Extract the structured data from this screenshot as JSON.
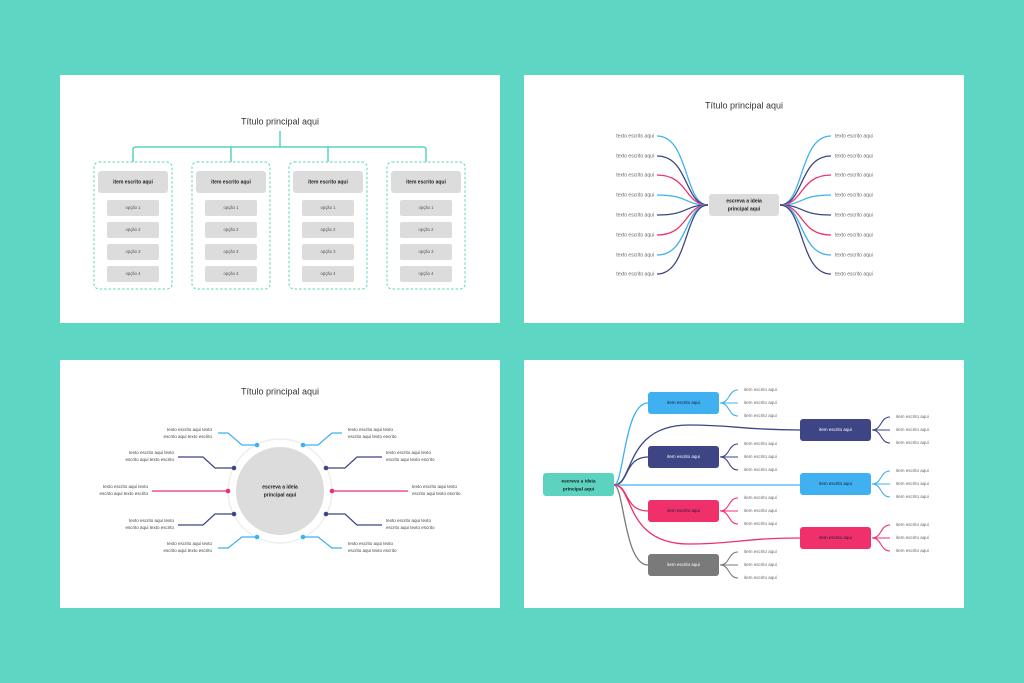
{
  "colors": {
    "background": "#5dd6c3",
    "light_blue": "#3fb0f0",
    "navy": "#3d4585",
    "pink": "#f0306a",
    "gray": "#7a7a7a",
    "teal": "#5bd3bf",
    "box_gray": "#dcdcdc"
  },
  "slide1": {
    "title": "Título principal aqui",
    "columns": [
      {
        "header": "item escrito aqui",
        "options": [
          "opção 1",
          "opção 2",
          "opção 3",
          "opção 4"
        ]
      },
      {
        "header": "item escrito aqui",
        "options": [
          "opção 1",
          "opção 2",
          "opção 3",
          "opção 4"
        ]
      },
      {
        "header": "item escrito aqui",
        "options": [
          "opção 1",
          "opção 2",
          "opção 3",
          "opção 4"
        ]
      },
      {
        "header": "item escrito aqui",
        "options": [
          "opção 1",
          "opção 2",
          "opção 3",
          "opção 4"
        ]
      }
    ]
  },
  "slide2": {
    "title": "Título principal aqui",
    "center": [
      "escreva a ideia",
      "principal  aqui"
    ],
    "left": [
      {
        "text": "texto escrito aqui",
        "color": "light_blue"
      },
      {
        "text": "texto escrito aqui",
        "color": "navy"
      },
      {
        "text": "texto escrito aqui",
        "color": "pink"
      },
      {
        "text": "texto escrito aqui",
        "color": "light_blue"
      },
      {
        "text": "texto escrito aqui",
        "color": "navy"
      },
      {
        "text": "texto escrito aqui",
        "color": "pink"
      },
      {
        "text": "texto escrito aqui",
        "color": "light_blue"
      },
      {
        "text": "texto escrito aqui",
        "color": "navy"
      }
    ],
    "right": [
      {
        "text": "texto escrito aqui",
        "color": "light_blue"
      },
      {
        "text": "texto escrito aqui",
        "color": "navy"
      },
      {
        "text": "texto escrito aqui",
        "color": "pink"
      },
      {
        "text": "texto escrito aqui",
        "color": "light_blue"
      },
      {
        "text": "texto escrito aqui",
        "color": "navy"
      },
      {
        "text": "texto escrito aqui",
        "color": "pink"
      },
      {
        "text": "texto escrito aqui",
        "color": "light_blue"
      },
      {
        "text": "texto escrito aqui",
        "color": "navy"
      }
    ]
  },
  "slide3": {
    "title": "Título principal aqui",
    "center": [
      "escreva a ideia",
      "principal  aqui"
    ],
    "left": [
      {
        "lines": [
          "texto escrito aqui texto",
          "escrito aqui texto escrito"
        ],
        "color": "light_blue"
      },
      {
        "lines": [
          "texto escrito aqui texto",
          "escrito aqui texto escrito"
        ],
        "color": "navy"
      },
      {
        "lines": [
          "texto escrito aqui texto",
          "escrito aqui texto escrito"
        ],
        "color": "pink"
      },
      {
        "lines": [
          "texto escrito aqui texto",
          "escrito aqui texto escrito"
        ],
        "color": "navy"
      },
      {
        "lines": [
          "texto escrito aqui texto",
          "escrito aqui texto escrito"
        ],
        "color": "light_blue"
      }
    ],
    "right": [
      {
        "lines": [
          "texto escrito aqui texto",
          "escrito aqui texto escrito"
        ],
        "color": "light_blue"
      },
      {
        "lines": [
          "texto escrito aqui texto",
          "escrito aqui texto escrito"
        ],
        "color": "navy"
      },
      {
        "lines": [
          "texto escrito aqui texto",
          "escrito aqui texto escrito"
        ],
        "color": "pink"
      },
      {
        "lines": [
          "texto escrito aqui texto",
          "escrito aqui texto escrito"
        ],
        "color": "navy"
      },
      {
        "lines": [
          "texto escrito aqui texto",
          "escrito aqui texto escrito"
        ],
        "color": "light_blue"
      }
    ]
  },
  "slide4": {
    "root": [
      "escreva a ideia",
      "principal aqui"
    ],
    "near_nodes": [
      {
        "label": "item escrito aqui",
        "color": "light_blue",
        "children": [
          "item escrito aqui",
          "item escrito aqui",
          "item escrito aqui"
        ]
      },
      {
        "label": "item escrito aqui",
        "color": "navy",
        "children": [
          "item escrito aqui",
          "item escrito aqui",
          "item escrito aqui"
        ]
      },
      {
        "label": "item escrito aqui",
        "color": "pink",
        "children": [
          "item escrito aqui",
          "item escrito aqui",
          "item escrito aqui"
        ]
      },
      {
        "label": "item escrito aqui",
        "color": "gray",
        "children": [
          "item escrito aqui",
          "item escrito aqui",
          "item escrito aqui"
        ]
      }
    ],
    "far_nodes": [
      {
        "label": "item escrito aqui",
        "color": "navy",
        "children": [
          "item escrito aqui",
          "item escrito aqui",
          "item escrito aqui"
        ]
      },
      {
        "label": "item escrito aqui",
        "color": "light_blue",
        "children": [
          "item escrito aqui",
          "item escrito aqui",
          "item escrito aqui"
        ]
      },
      {
        "label": "item escrito aqui",
        "color": "pink",
        "children": [
          "item escrito aqui",
          "item escrito aqui",
          "item escrito aqui"
        ]
      }
    ]
  }
}
